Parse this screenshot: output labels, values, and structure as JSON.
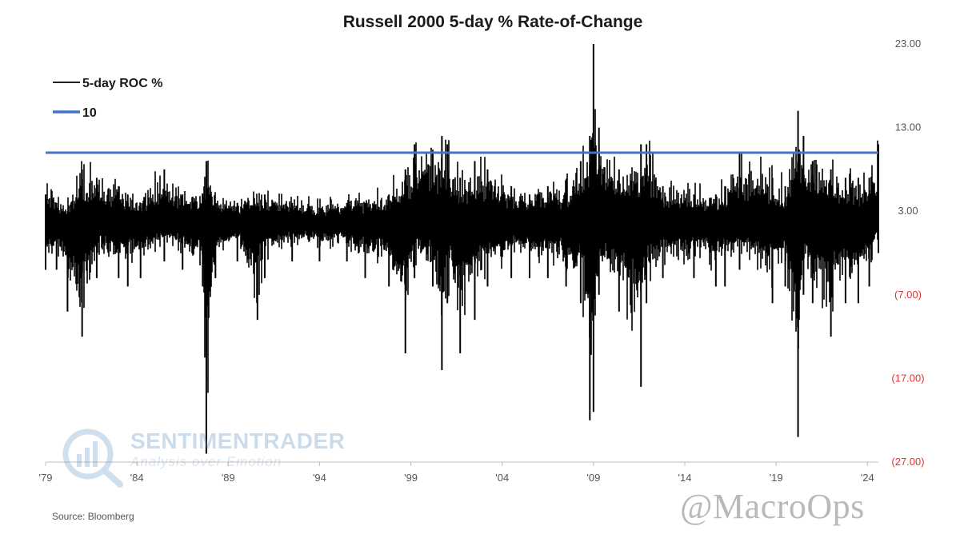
{
  "chart_data": {
    "type": "line",
    "title": "Russell 2000 5-day % Rate-of-Change",
    "xlabel": "",
    "ylabel": "",
    "x_tick_labels": [
      "'79",
      "'84",
      "'89",
      "'94",
      "'99",
      "'04",
      "'09",
      "'14",
      "'19",
      "'24"
    ],
    "x_ticks": [
      1979,
      1984,
      1989,
      1994,
      1999,
      2004,
      2009,
      2014,
      2019,
      2024
    ],
    "xlim": [
      1979,
      2024.6
    ],
    "y_ticks": [
      23,
      13,
      3,
      -7,
      -17,
      -27
    ],
    "y_tick_labels": [
      "23.00",
      "13.00",
      "3.00",
      "(7.00)",
      "(17.00)",
      "(27.00)"
    ],
    "ylim": [
      -27,
      23
    ],
    "negative_tick_color": "#e8312f",
    "legend_position": "top-left",
    "grid": false,
    "series": [
      {
        "name": "5-day ROC %",
        "color": "#000000",
        "kind": "daily oscillation around 0 (drawn as per-period min/max range)",
        "points": [
          {
            "x": 1979.0,
            "min": -4,
            "max": 5
          },
          {
            "x": 1979.6,
            "min": -4,
            "max": 4
          },
          {
            "x": 1980.2,
            "min": -9,
            "max": 3
          },
          {
            "x": 1981.0,
            "min": -12,
            "max": 8
          },
          {
            "x": 1981.8,
            "min": -5,
            "max": 7
          },
          {
            "x": 1983.0,
            "min": -5,
            "max": 6
          },
          {
            "x": 1983.5,
            "min": -6,
            "max": 5
          },
          {
            "x": 1984.2,
            "min": -5,
            "max": 4
          },
          {
            "x": 1985.5,
            "min": -3,
            "max": 8
          },
          {
            "x": 1986.5,
            "min": -4,
            "max": 5
          },
          {
            "x": 1987.6,
            "min": -6,
            "max": 5
          },
          {
            "x": 1987.8,
            "min": -26,
            "max": 9
          },
          {
            "x": 1988.3,
            "min": -5,
            "max": 4
          },
          {
            "x": 1989.5,
            "min": -3,
            "max": 4
          },
          {
            "x": 1990.6,
            "min": -10,
            "max": 4
          },
          {
            "x": 1991.0,
            "min": -5,
            "max": 5
          },
          {
            "x": 1992.5,
            "min": -3,
            "max": 4
          },
          {
            "x": 1994.0,
            "min": -3,
            "max": 3
          },
          {
            "x": 1995.5,
            "min": -3,
            "max": 4
          },
          {
            "x": 1996.5,
            "min": -5,
            "max": 4
          },
          {
            "x": 1997.8,
            "min": -6,
            "max": 5
          },
          {
            "x": 1998.7,
            "min": -14,
            "max": 8
          },
          {
            "x": 1999.2,
            "min": -5,
            "max": 11
          },
          {
            "x": 2000.2,
            "min": -6,
            "max": 10
          },
          {
            "x": 2000.7,
            "min": -16,
            "max": 12
          },
          {
            "x": 2001.0,
            "min": -8,
            "max": 11
          },
          {
            "x": 2001.7,
            "min": -14,
            "max": 7
          },
          {
            "x": 2002.5,
            "min": -10,
            "max": 9
          },
          {
            "x": 2003.2,
            "min": -6,
            "max": 8
          },
          {
            "x": 2004.5,
            "min": -5,
            "max": 6
          },
          {
            "x": 2005.5,
            "min": -5,
            "max": 5
          },
          {
            "x": 2006.5,
            "min": -5,
            "max": 6
          },
          {
            "x": 2007.5,
            "min": -6,
            "max": 6
          },
          {
            "x": 2008.3,
            "min": -8,
            "max": 9
          },
          {
            "x": 2008.8,
            "min": -22,
            "max": 12
          },
          {
            "x": 2009.0,
            "min": -21,
            "max": 23
          },
          {
            "x": 2009.3,
            "min": -7,
            "max": 13
          },
          {
            "x": 2010.4,
            "min": -9,
            "max": 8
          },
          {
            "x": 2011.6,
            "min": -18,
            "max": 11
          },
          {
            "x": 2011.9,
            "min": -8,
            "max": 11
          },
          {
            "x": 2012.8,
            "min": -5,
            "max": 6
          },
          {
            "x": 2014.5,
            "min": -5,
            "max": 5
          },
          {
            "x": 2015.7,
            "min": -6,
            "max": 5
          },
          {
            "x": 2016.2,
            "min": -6,
            "max": 6
          },
          {
            "x": 2017.0,
            "min": -4,
            "max": 10
          },
          {
            "x": 2018.8,
            "min": -8,
            "max": 7
          },
          {
            "x": 2019.5,
            "min": -6,
            "max": 6
          },
          {
            "x": 2020.2,
            "min": -24,
            "max": 15
          },
          {
            "x": 2020.5,
            "min": -7,
            "max": 12
          },
          {
            "x": 2021.0,
            "min": -8,
            "max": 9
          },
          {
            "x": 2022.0,
            "min": -12,
            "max": 8
          },
          {
            "x": 2022.8,
            "min": -8,
            "max": 7
          },
          {
            "x": 2023.5,
            "min": -8,
            "max": 7
          },
          {
            "x": 2024.1,
            "min": -6,
            "max": 7
          },
          {
            "x": 2024.6,
            "min": -2,
            "max": 11
          }
        ]
      },
      {
        "name": "10",
        "color": "#4472c4",
        "constant": 10
      }
    ]
  },
  "branding": {
    "logo_word1": "SENTIMENTRADER",
    "logo_word2": "Analysis over Emotion",
    "watermark": "@MacroOps"
  },
  "footer": {
    "source": "Source: Bloomberg"
  }
}
